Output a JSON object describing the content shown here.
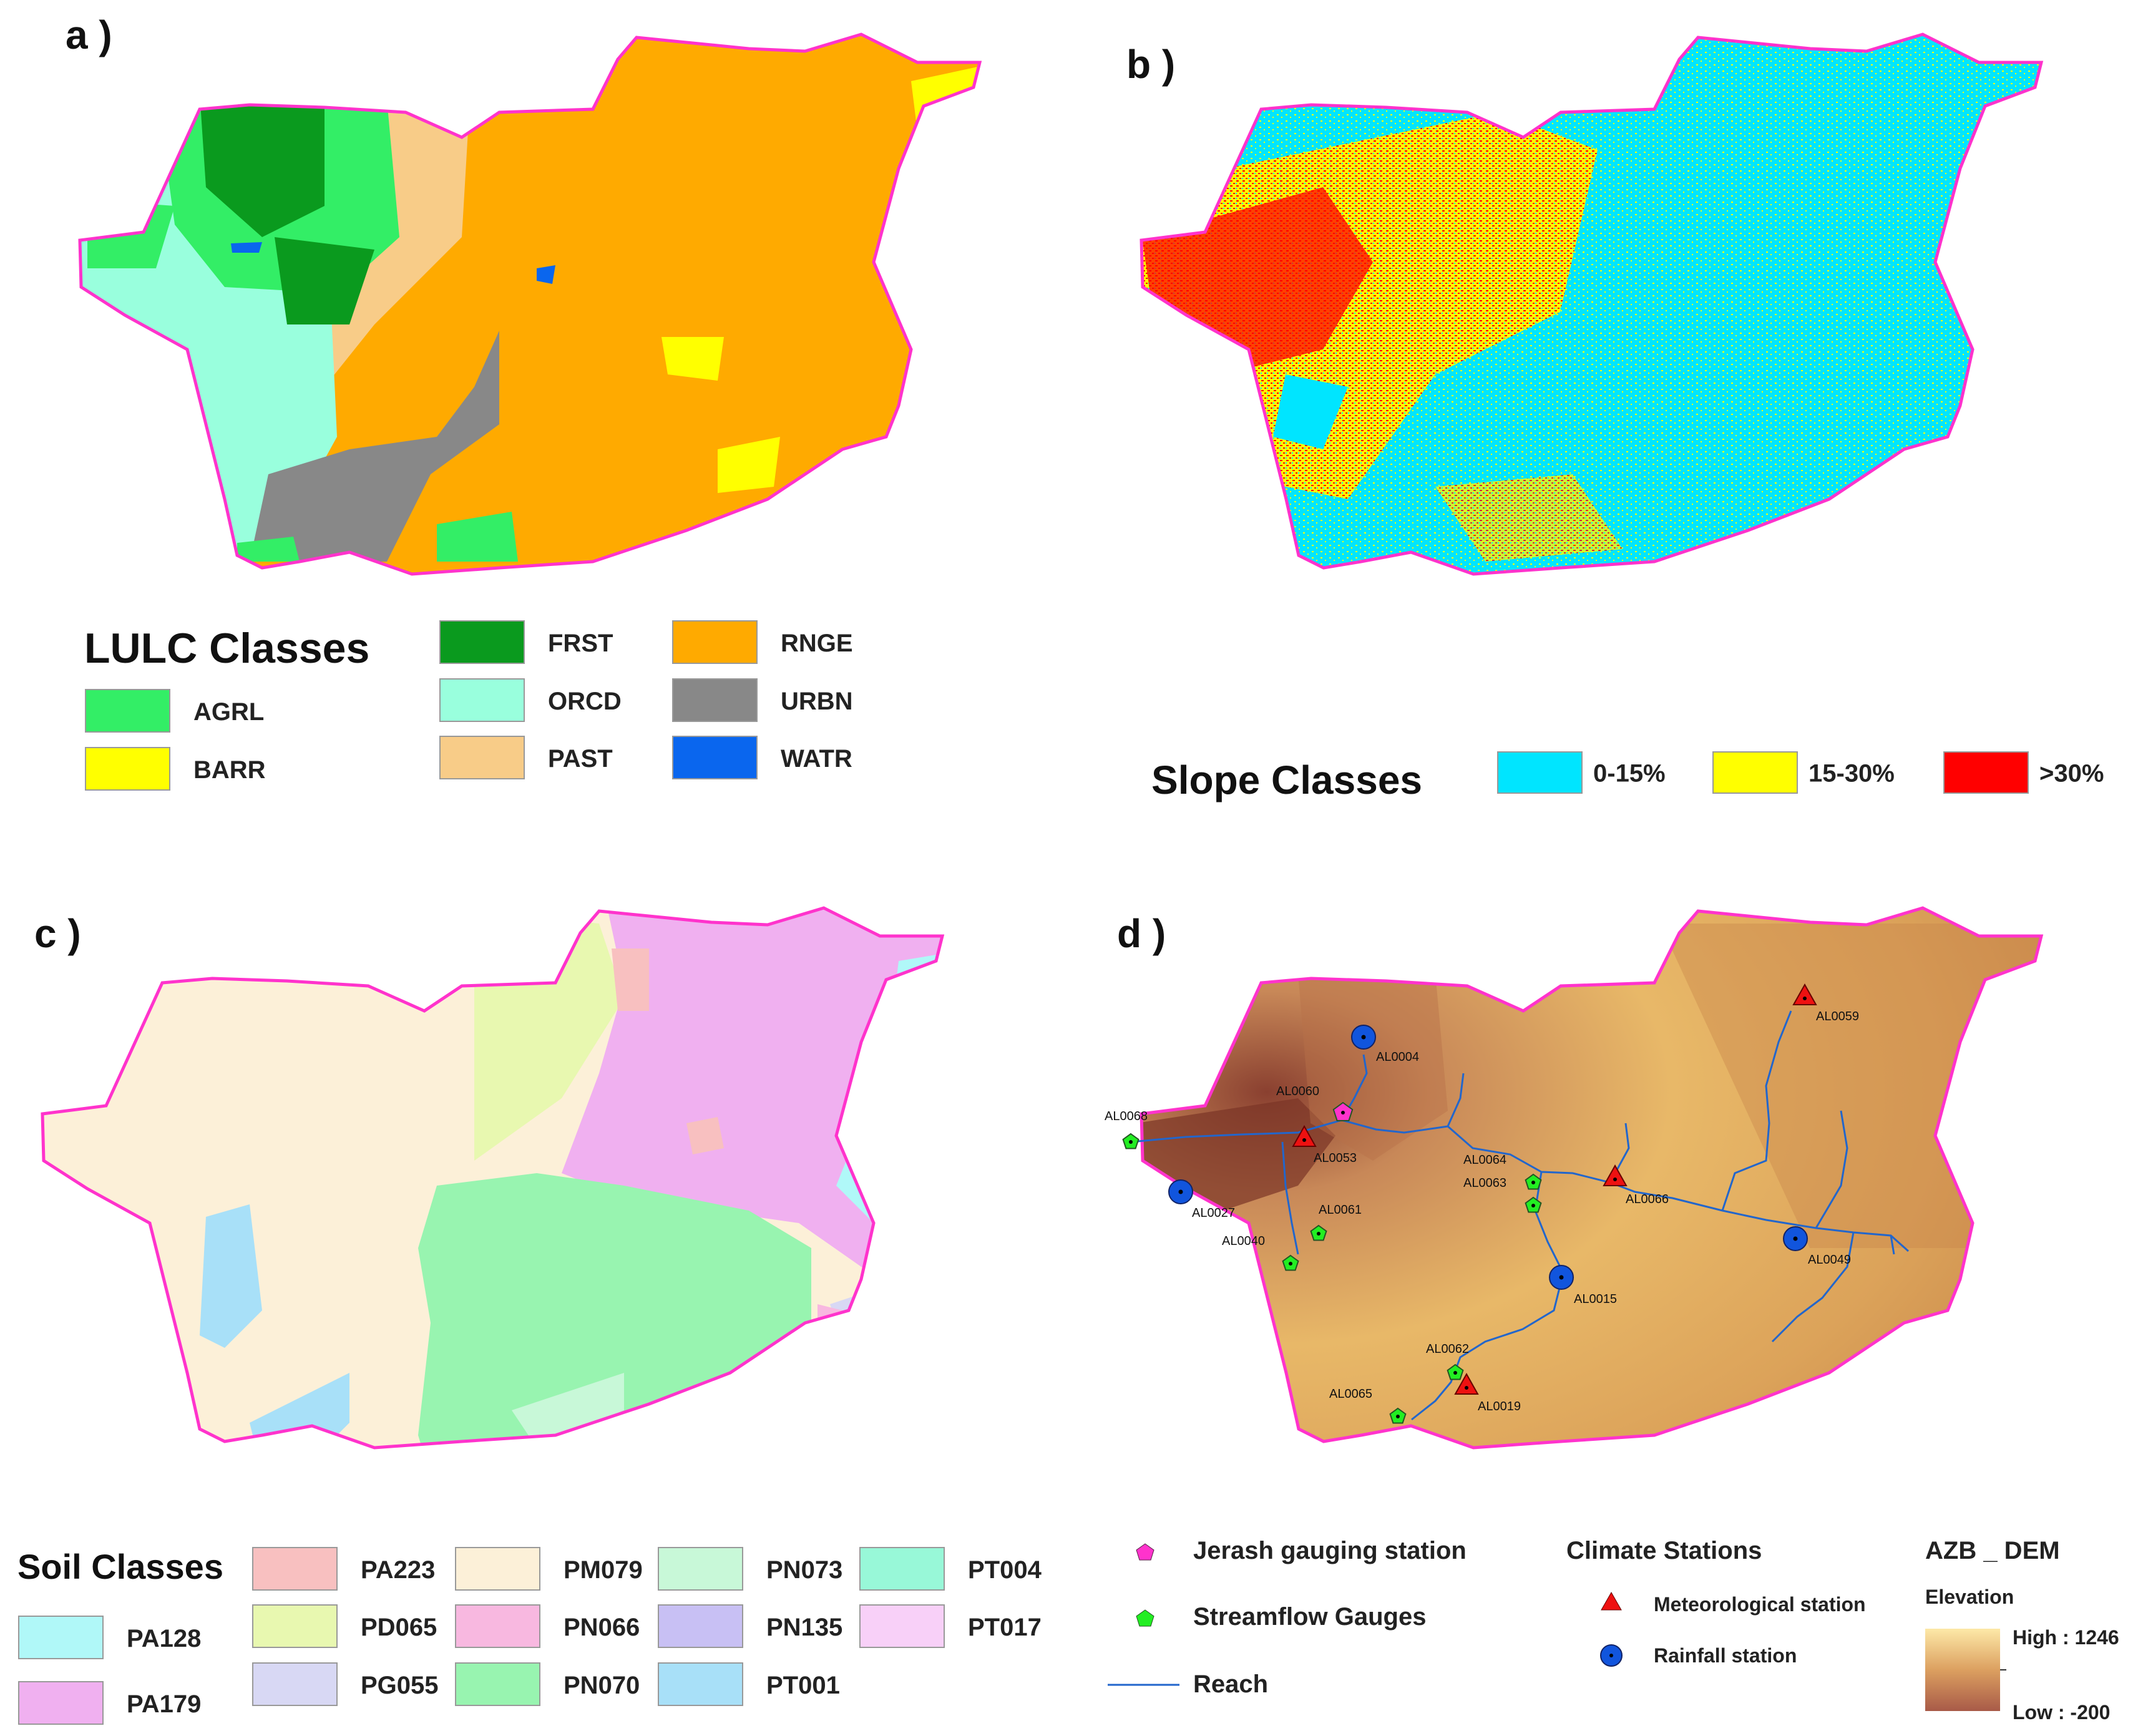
{
  "panels": {
    "a": {
      "label": "a )",
      "legend_title": "LULC Classes",
      "classes": [
        {
          "code": "AGRL",
          "color": "#33ee66"
        },
        {
          "code": "BARR",
          "color": "#ffff00"
        },
        {
          "code": "FRST",
          "color": "#0a9a1e"
        },
        {
          "code": "ORCD",
          "color": "#99ffdd"
        },
        {
          "code": "PAST",
          "color": "#f8cc88"
        },
        {
          "code": "RNGE",
          "color": "#ffaa00"
        },
        {
          "code": "URBN",
          "color": "#888888"
        },
        {
          "code": "WATR",
          "color": "#0a66ee"
        }
      ]
    },
    "b": {
      "label": "b )",
      "legend_title": "Slope Classes",
      "classes": [
        {
          "code": "0-15%",
          "color": "#00e5ff"
        },
        {
          "code": "15-30%",
          "color": "#ffff00"
        },
        {
          "code": ">30%",
          "color": "#ff0000"
        }
      ]
    },
    "c": {
      "label": "c )",
      "legend_title": "Soil Classes",
      "classes": [
        {
          "code": "PA128",
          "color": "#b0f8f8"
        },
        {
          "code": "PA179",
          "color": "#f0b0f0"
        },
        {
          "code": "PA223",
          "color": "#f8c0c0"
        },
        {
          "code": "PD065",
          "color": "#e8f8b0"
        },
        {
          "code": "PG055",
          "color": "#d8d8f4"
        },
        {
          "code": "PM079",
          "color": "#fcf0d8"
        },
        {
          "code": "PN066",
          "color": "#f8b8e0"
        },
        {
          "code": "PN070",
          "color": "#98f4b0"
        },
        {
          "code": "PN073",
          "color": "#c8f8d8"
        },
        {
          "code": "PN135",
          "color": "#c8c0f4"
        },
        {
          "code": "PT001",
          "color": "#a8e0f8"
        },
        {
          "code": "PT004",
          "color": "#98f8d8"
        },
        {
          "code": "PT017",
          "color": "#f8d0f8"
        }
      ]
    },
    "d": {
      "label": "d )",
      "stations": [
        {
          "id": "AL0004",
          "kind": "rainfall"
        },
        {
          "id": "AL0060",
          "kind": "jerash"
        },
        {
          "id": "AL0068",
          "kind": "streamflow"
        },
        {
          "id": "AL0053",
          "kind": "meteorological"
        },
        {
          "id": "AL0027",
          "kind": "rainfall"
        },
        {
          "id": "AL0061",
          "kind": "streamflow"
        },
        {
          "id": "AL0040",
          "kind": "streamflow"
        },
        {
          "id": "AL0064",
          "kind": "streamflow"
        },
        {
          "id": "AL0063",
          "kind": "streamflow"
        },
        {
          "id": "AL0066",
          "kind": "meteorological"
        },
        {
          "id": "AL0059",
          "kind": "meteorological"
        },
        {
          "id": "AL0049",
          "kind": "rainfall"
        },
        {
          "id": "AL0015",
          "kind": "rainfall"
        },
        {
          "id": "AL0062",
          "kind": "streamflow"
        },
        {
          "id": "AL0019",
          "kind": "meteorological"
        },
        {
          "id": "AL0065",
          "kind": "streamflow"
        }
      ],
      "legend": {
        "jerash": "Jerash gauging station",
        "streamflow": "Streamflow Gauges",
        "reach": "Reach",
        "climate_title": "Climate Stations",
        "meteorological": "Meteorological station",
        "rainfall": "Rainfall station",
        "dem_title": "AZB _ DEM",
        "dem_subtitle": "Elevation",
        "dem_high": "High : 1246",
        "dem_low": "Low : -200"
      },
      "colors": {
        "jerash": "#ff33cc",
        "streamflow": "#22ee22",
        "meteorological": "#ee1111",
        "rainfall": "#1155dd",
        "reach": "#2266cc",
        "dem_high": "#fde9a8",
        "dem_low": "#a85a48",
        "boundary": "#ff33cc"
      }
    }
  }
}
